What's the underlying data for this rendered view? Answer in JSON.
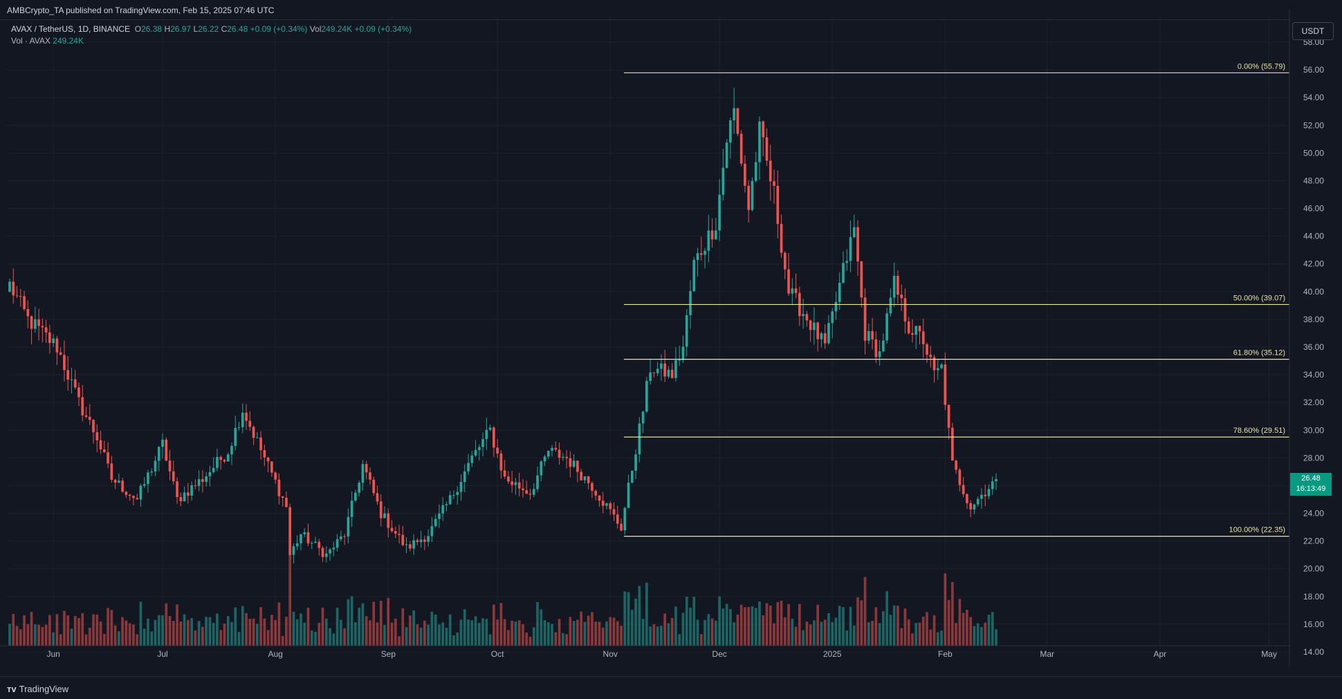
{
  "header": {
    "published": "AMBCrypto_TA published on TradingView.com, Feb 15, 2025 07:46 UTC"
  },
  "legend": {
    "symbol": "AVAX / TetherUS, 1D, BINANCE",
    "o_label": "O",
    "o": "26.38",
    "h_label": "H",
    "h": "26.97",
    "l_label": "L",
    "l": "26.22",
    "c_label": "C",
    "c": "26.48",
    "change": "+0.09 (+0.34%)",
    "vol_label": "Vol",
    "vol": "249.24K",
    "vol_change": "+0.09 (+0.34%)",
    "vol_row_label": "Vol · AVAX",
    "vol_row_value": "249.24K"
  },
  "currency": "USDT",
  "price_tag": {
    "price": "26.48",
    "countdown": "16:13:49"
  },
  "footer": {
    "brand": "TradingView"
  },
  "colors": {
    "up": "#26a69a",
    "down": "#ef5350",
    "fib": "#e8e3a6",
    "bg": "#131722",
    "grid": "#1e222d"
  },
  "chart_data": {
    "type": "candlestick",
    "ylim": [
      13,
      59
    ],
    "y_ticks": [
      "14.00",
      "16.00",
      "18.00",
      "20.00",
      "22.00",
      "24.00",
      "26.00",
      "28.00",
      "30.00",
      "32.00",
      "34.00",
      "36.00",
      "38.00",
      "40.00",
      "42.00",
      "44.00",
      "46.00",
      "48.00",
      "50.00",
      "52.00",
      "54.00",
      "56.00",
      "58.00"
    ],
    "x_ticks": [
      "Jun",
      "Jul",
      "Aug",
      "Sep",
      "Oct",
      "Nov",
      "Dec",
      "2025",
      "Feb",
      "Mar",
      "Apr",
      "May"
    ],
    "fib_levels": [
      {
        "label": "0.00% (55.79)",
        "value": 55.79
      },
      {
        "label": "50.00% (39.07)",
        "value": 39.07
      },
      {
        "label": "61.80% (35.12)",
        "value": 35.12
      },
      {
        "label": "78.60% (29.51)",
        "value": 29.51
      },
      {
        "label": "100.00% (22.35)",
        "value": 22.35
      }
    ],
    "close_keypoints": [
      [
        "2024-05-20",
        40.5
      ],
      [
        "2024-05-25",
        38.0
      ],
      [
        "2024-06-02",
        36.0
      ],
      [
        "2024-06-08",
        32.0
      ],
      [
        "2024-06-13",
        29.5
      ],
      [
        "2024-06-17",
        26.5
      ],
      [
        "2024-06-24",
        25.0
      ],
      [
        "2024-07-01",
        29.0
      ],
      [
        "2024-07-05",
        25.0
      ],
      [
        "2024-07-12",
        26.5
      ],
      [
        "2024-07-19",
        28.5
      ],
      [
        "2024-07-23",
        31.5
      ],
      [
        "2024-07-29",
        28.0
      ],
      [
        "2024-08-04",
        24.5
      ],
      [
        "2024-08-05",
        21.0
      ],
      [
        "2024-08-08",
        22.5
      ],
      [
        "2024-08-15",
        21.0
      ],
      [
        "2024-08-20",
        22.5
      ],
      [
        "2024-08-25",
        27.5
      ],
      [
        "2024-08-30",
        24.0
      ],
      [
        "2024-09-06",
        21.5
      ],
      [
        "2024-09-12",
        22.5
      ],
      [
        "2024-09-18",
        25.0
      ],
      [
        "2024-09-24",
        28.0
      ],
      [
        "2024-09-29",
        30.0
      ],
      [
        "2024-10-03",
        26.5
      ],
      [
        "2024-10-10",
        25.5
      ],
      [
        "2024-10-15",
        28.5
      ],
      [
        "2024-10-20",
        28.0
      ],
      [
        "2024-10-27",
        26.0
      ],
      [
        "2024-11-04",
        23.0
      ],
      [
        "2024-11-10",
        31.5
      ],
      [
        "2024-11-12",
        34.5
      ],
      [
        "2024-11-18",
        34.0
      ],
      [
        "2024-11-21",
        36.0
      ],
      [
        "2024-11-24",
        42.0
      ],
      [
        "2024-11-30",
        45.0
      ],
      [
        "2024-12-03",
        51.0
      ],
      [
        "2024-12-05",
        53.0
      ],
      [
        "2024-12-09",
        46.0
      ],
      [
        "2024-12-12",
        51.5
      ],
      [
        "2024-12-16",
        47.0
      ],
      [
        "2024-12-20",
        40.0
      ],
      [
        "2024-12-24",
        38.5
      ],
      [
        "2024-12-30",
        36.0
      ],
      [
        "2025-01-04",
        41.5
      ],
      [
        "2025-01-07",
        44.5
      ],
      [
        "2025-01-10",
        37.0
      ],
      [
        "2025-01-14",
        35.5
      ],
      [
        "2025-01-18",
        40.5
      ],
      [
        "2025-01-22",
        37.5
      ],
      [
        "2025-01-26",
        36.5
      ],
      [
        "2025-01-29",
        34.0
      ],
      [
        "2025-01-31",
        34.5
      ],
      [
        "2025-02-03",
        27.5
      ],
      [
        "2025-02-08",
        24.5
      ],
      [
        "2025-02-15",
        26.48
      ]
    ]
  }
}
